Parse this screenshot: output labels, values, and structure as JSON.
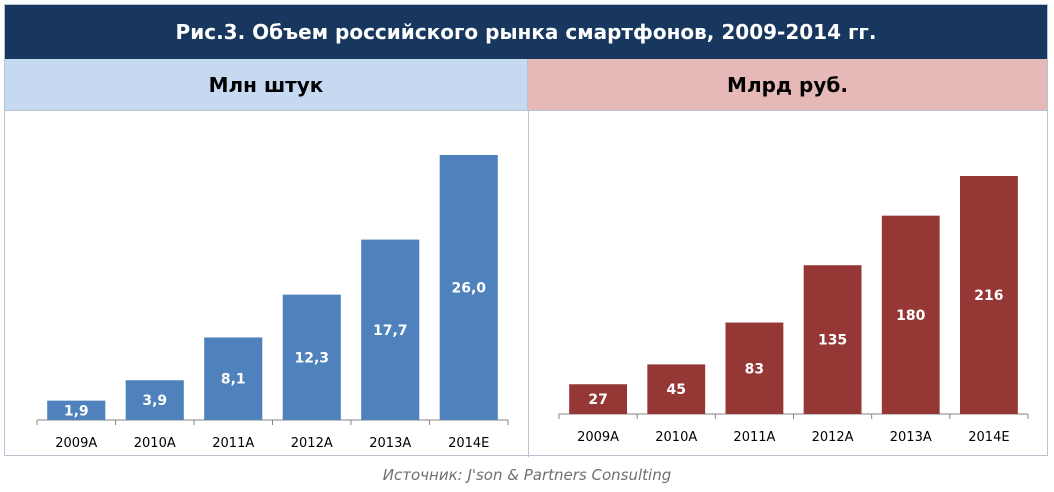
{
  "title": "Рис.3. Объем российского рынка смартфонов, 2009-2014 гг.",
  "source": "Источник: J'son & Partners Consulting",
  "chart_data": [
    {
      "type": "bar",
      "title": "Млн штук",
      "categories": [
        "2009A",
        "2010A",
        "2011A",
        "2012A",
        "2013A",
        "2014E"
      ],
      "values": [
        1.9,
        3.9,
        8.1,
        12.3,
        17.7,
        26.0
      ],
      "value_labels": [
        "1,9",
        "3,9",
        "8,1",
        "12,3",
        "17,7",
        "26,0"
      ],
      "ylim": [
        0,
        26.0
      ],
      "xlabel": "",
      "ylabel": "",
      "bar_color": "#4f81bd",
      "header_color": "#c5d9f1"
    },
    {
      "type": "bar",
      "title": "Млрд руб.",
      "categories": [
        "2009A",
        "2010A",
        "2011A",
        "2012A",
        "2013A",
        "2014E"
      ],
      "values": [
        27,
        45,
        83,
        135,
        180,
        216
      ],
      "value_labels": [
        "27",
        "45",
        "83",
        "135",
        "180",
        "216"
      ],
      "ylim": [
        0,
        216
      ],
      "xlabel": "",
      "ylabel": "",
      "bar_color": "#953735",
      "header_color": "#e6b9b8"
    }
  ]
}
